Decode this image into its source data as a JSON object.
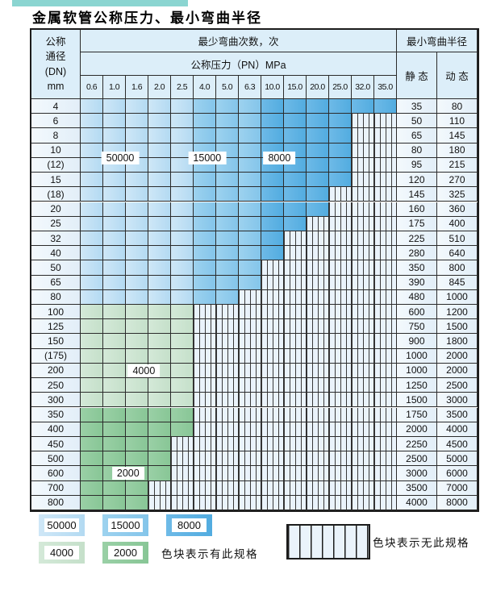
{
  "title": "金属软管公称压力、最小弯曲半径",
  "table": {
    "dn_header_lines": [
      "公称",
      "通径",
      "(DN)",
      "mm"
    ],
    "min_cycles_label": "最少弯曲次数，次",
    "pn_label": "公称压力（PN）MPa",
    "min_radius_label": "最小弯曲半径",
    "static_label": "静 态",
    "dynamic_label": "动 态",
    "pressure_columns": [
      "0.6",
      "1.0",
      "1.6",
      "2.0",
      "2.5",
      "4.0",
      "5.0",
      "6.3",
      "10.0",
      "15.0",
      "20.0",
      "25.0",
      "32.0",
      "35.0"
    ],
    "zone_ranges": {
      "blue_50000": [
        0,
        4
      ],
      "blue_15000": [
        5,
        7
      ],
      "blue_8000": [
        8,
        13
      ]
    },
    "rows": [
      {
        "dn": "4",
        "last_col": 13,
        "zone": "blue",
        "static": "35",
        "dynamic": "80"
      },
      {
        "dn": "6",
        "last_col": 11,
        "zone": "blue",
        "static": "50",
        "dynamic": "110"
      },
      {
        "dn": "8",
        "last_col": 11,
        "zone": "blue",
        "static": "65",
        "dynamic": "145"
      },
      {
        "dn": "10",
        "last_col": 11,
        "zone": "blue",
        "static": "80",
        "dynamic": "180"
      },
      {
        "dn": "(12)",
        "last_col": 11,
        "zone": "blue",
        "static": "95",
        "dynamic": "215"
      },
      {
        "dn": "15",
        "last_col": 11,
        "zone": "blue",
        "static": "120",
        "dynamic": "270"
      },
      {
        "dn": "(18)",
        "last_col": 10,
        "zone": "blue",
        "static": "145",
        "dynamic": "325"
      },
      {
        "dn": "20",
        "last_col": 10,
        "zone": "blue",
        "static": "160",
        "dynamic": "360"
      },
      {
        "dn": "25",
        "last_col": 9,
        "zone": "blue",
        "static": "175",
        "dynamic": "400"
      },
      {
        "dn": "32",
        "last_col": 8,
        "zone": "blue",
        "static": "225",
        "dynamic": "510"
      },
      {
        "dn": "40",
        "last_col": 8,
        "zone": "blue",
        "static": "280",
        "dynamic": "640"
      },
      {
        "dn": "50",
        "last_col": 7,
        "zone": "blue",
        "static": "350",
        "dynamic": "800"
      },
      {
        "dn": "65",
        "last_col": 7,
        "zone": "blue",
        "static": "390",
        "dynamic": "845"
      },
      {
        "dn": "80",
        "last_col": 6,
        "zone": "blue",
        "static": "480",
        "dynamic": "1000"
      },
      {
        "dn": "100",
        "last_col": 4,
        "zone": "4000",
        "static": "600",
        "dynamic": "1200"
      },
      {
        "dn": "125",
        "last_col": 4,
        "zone": "4000",
        "static": "750",
        "dynamic": "1500"
      },
      {
        "dn": "150",
        "last_col": 4,
        "zone": "4000",
        "static": "900",
        "dynamic": "1800"
      },
      {
        "dn": "(175)",
        "last_col": 4,
        "zone": "4000",
        "static": "1000",
        "dynamic": "2000"
      },
      {
        "dn": "200",
        "last_col": 4,
        "zone": "4000",
        "static": "1000",
        "dynamic": "2000"
      },
      {
        "dn": "250",
        "last_col": 4,
        "zone": "4000",
        "static": "1250",
        "dynamic": "2500"
      },
      {
        "dn": "300",
        "last_col": 4,
        "zone": "4000",
        "static": "1500",
        "dynamic": "3000"
      },
      {
        "dn": "350",
        "last_col": 4,
        "zone": "2000",
        "static": "1750",
        "dynamic": "3500"
      },
      {
        "dn": "400",
        "last_col": 4,
        "zone": "2000",
        "static": "2000",
        "dynamic": "4000"
      },
      {
        "dn": "450",
        "last_col": 3,
        "zone": "2000",
        "static": "2250",
        "dynamic": "4500"
      },
      {
        "dn": "500",
        "last_col": 3,
        "zone": "2000",
        "static": "2500",
        "dynamic": "5000"
      },
      {
        "dn": "600",
        "last_col": 3,
        "zone": "2000",
        "static": "3000",
        "dynamic": "6000"
      },
      {
        "dn": "700",
        "last_col": 2,
        "zone": "2000",
        "static": "3500",
        "dynamic": "7000"
      },
      {
        "dn": "800",
        "last_col": 2,
        "zone": "2000",
        "static": "4000",
        "dynamic": "8000"
      }
    ],
    "annotations": [
      {
        "text": "50000",
        "col": 1.75,
        "row": 4.0
      },
      {
        "text": "15000",
        "col": 5.6,
        "row": 4.0
      },
      {
        "text": "8000",
        "col": 8.8,
        "row": 4.0
      },
      {
        "text": "4000",
        "col": 2.8,
        "row": 18.5
      },
      {
        "text": "2000",
        "col": 2.1,
        "row": 25.5
      }
    ]
  },
  "legend": {
    "items": [
      {
        "label": "50000",
        "zone": "50000"
      },
      {
        "label": "15000",
        "zone": "15000"
      },
      {
        "label": "8000",
        "zone": "8000"
      },
      {
        "label": "4000",
        "zone": "4000"
      },
      {
        "label": "2000",
        "zone": "2000"
      }
    ],
    "has_spec_text": "色块表示有此规格",
    "no_spec_text": "色块表示无此规格"
  },
  "colors": {
    "zone_colors": {
      "50000": [
        "#cfe7f7",
        "#b3daf2"
      ],
      "15000": [
        "#9dd2ef",
        "#84c5ea"
      ],
      "8000": [
        "#6ebae7",
        "#52ace0"
      ],
      "4000": [
        "#d4e9d8",
        "#c5e0ca"
      ],
      "2000": [
        "#9ad0a6",
        "#88c696"
      ]
    },
    "hatch_bg": "#eaf3fb",
    "hatch_line": "#3a3a3a",
    "header_bg": "#dceef9",
    "label_col_bg": [
      "#f3f9fd",
      "#e2eef8"
    ],
    "grid_line": "#2b2b2b",
    "accent_strip": "#8bd5d1"
  }
}
